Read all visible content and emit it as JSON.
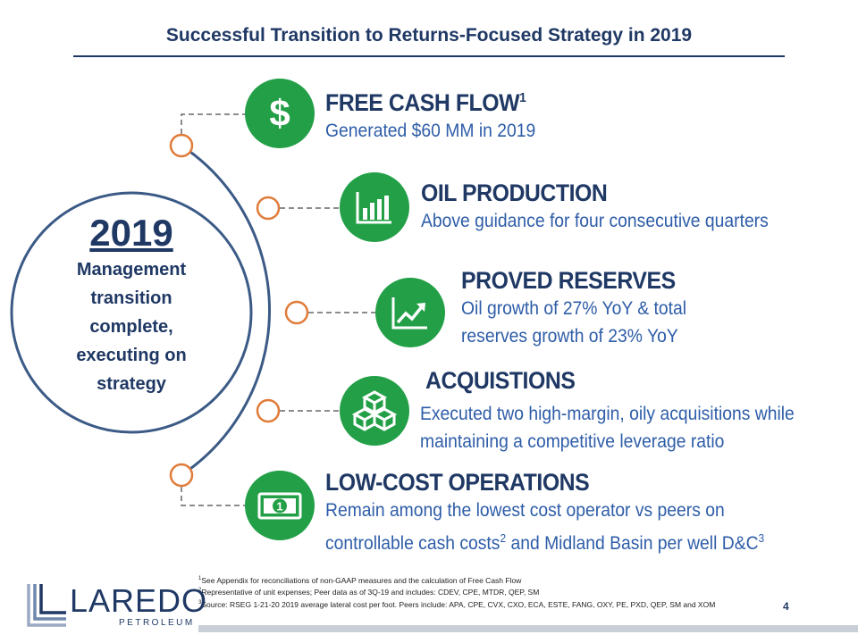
{
  "header": {
    "title": "Successful Transition to Returns-Focused Strategy in 2019"
  },
  "center": {
    "year": "2019",
    "description": "Management transition complete, executing on strategy"
  },
  "items": [
    {
      "title": "FREE CASH FLOW",
      "sup": "1",
      "icon": "dollar-icon",
      "line1": "Generated $60 MM in 2019",
      "line2": ""
    },
    {
      "title": "OIL PRODUCTION",
      "sup": "",
      "icon": "bar-chart-icon",
      "line1": "Above guidance for four consecutive quarters",
      "line2": ""
    },
    {
      "title": "PROVED RESERVES",
      "sup": "",
      "icon": "trend-up-icon",
      "line1": "Oil growth of 27% YoY & total",
      "line2": "reserves growth of 23% YoY"
    },
    {
      "title": "ACQUISTIONS",
      "sup": "",
      "icon": "cubes-icon",
      "line1": "Executed two high-margin, oily acquisitions while",
      "line2": "maintaining a competitive leverage ratio"
    },
    {
      "title": "LOW-COST OPERATIONS",
      "sup": "",
      "icon": "banknote-icon",
      "line1": "Remain among the lowest cost operator vs peers on",
      "line2a": "controllable cash costs",
      "line2a_sup": "2",
      "line2b": " and Midland Basin per well D&C",
      "line2b_sup": "3"
    }
  ],
  "footnotes": {
    "fn1_mark": "1",
    "fn1": "See Appendix for reconciliations of non-GAAP measures and the calculation of Free Cash Flow",
    "fn2_mark": "2",
    "fn2": "Representative of unit expenses; Peer data as of 3Q-19 and includes: CDEV, CPE, MTDR, QEP, SM",
    "fn3_mark": "3",
    "fn3": "Source: RSEG 1-21-20 2019 average lateral cost per foot. Peers include: APA, CPE, CVX, CXO, ECA, ESTE, FANG, OXY, PE, PXD, QEP, SM and XOM"
  },
  "page_number": "4",
  "logo": {
    "word": "LAREDO",
    "sub": "PETROLEUM"
  },
  "colors": {
    "navy": "#1f3864",
    "blue_text": "#2e5da8",
    "green": "#23a047",
    "orange": "#e07b39",
    "ring": "#3b5a86"
  }
}
